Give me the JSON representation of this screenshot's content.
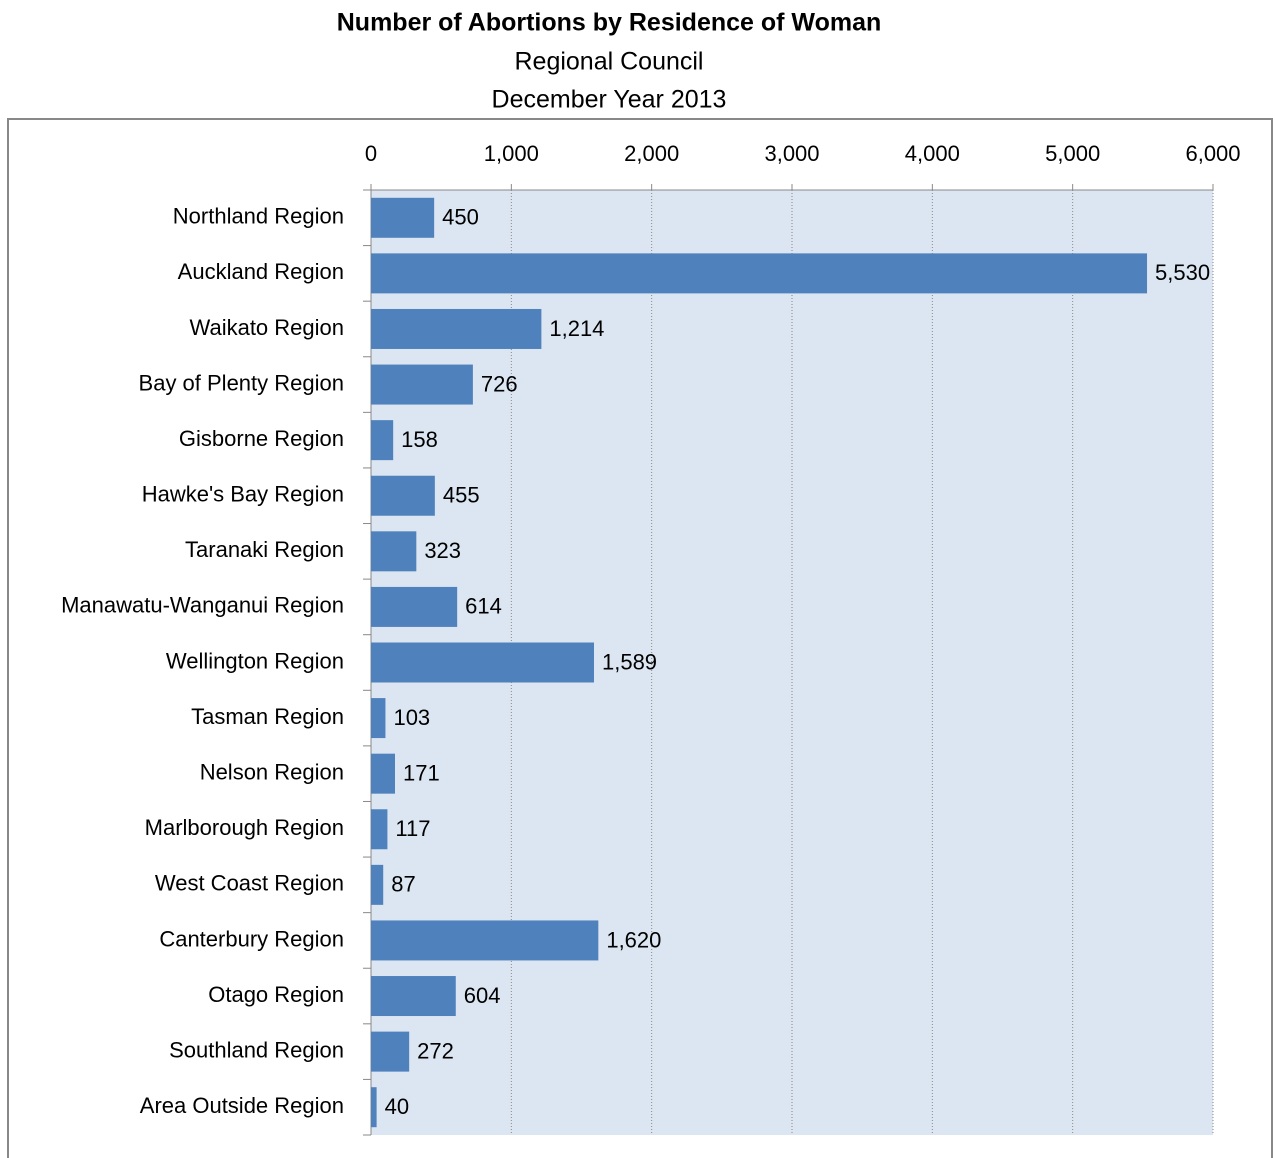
{
  "chart_data": {
    "type": "bar",
    "orientation": "horizontal",
    "title": "Number of Abortions by Residence of Woman",
    "subtitle": [
      "Regional Council",
      "December Year 2013"
    ],
    "categories": [
      "Northland Region",
      "Auckland Region",
      "Waikato Region",
      "Bay of Plenty Region",
      "Gisborne Region",
      "Hawke's Bay Region",
      "Taranaki Region",
      "Manawatu-Wanganui Region",
      "Wellington Region",
      "Tasman Region",
      "Nelson Region",
      "Marlborough Region",
      "West Coast Region",
      "Canterbury Region",
      "Otago Region",
      "Southland Region",
      "Area Outside Region"
    ],
    "values": [
      450,
      5530,
      1214,
      726,
      158,
      455,
      323,
      614,
      1589,
      103,
      171,
      117,
      87,
      1620,
      604,
      272,
      40
    ],
    "value_labels": [
      "450",
      "5,530",
      "1,214",
      "726",
      "158",
      "455",
      "323",
      "614",
      "1,589",
      "103",
      "171",
      "117",
      "87",
      "1,620",
      "604",
      "272",
      "40"
    ],
    "color": "#4f81bd",
    "xlim": [
      0,
      6000
    ],
    "xticks": [
      0,
      {
        "value": 1000,
        "label": "1,000"
      },
      {
        "value": 2000,
        "label": "2,000"
      },
      {
        "value": 3000,
        "label": "3,000"
      },
      {
        "value": 4000,
        "label": "4,000"
      },
      {
        "value": 5000,
        "label": "5,000"
      },
      {
        "value": 6000,
        "label": "6,000"
      }
    ],
    "grid": true
  }
}
